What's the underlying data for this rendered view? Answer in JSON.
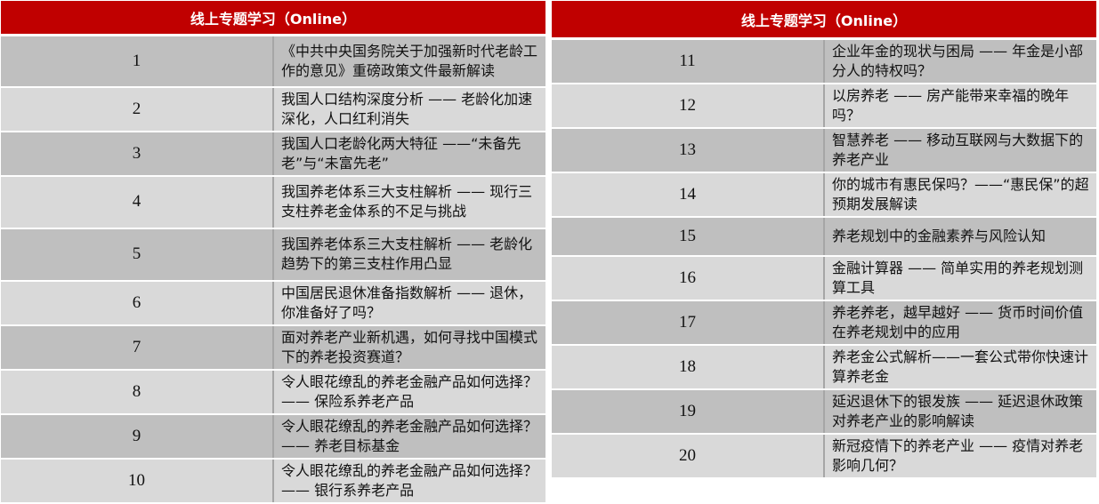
{
  "left": {
    "header": "线上专题学习（Online）",
    "rows": [
      {
        "num": "1",
        "title": "《中共中央国务院关于加强新时代老龄工作的意见》重磅政策文件最新解读"
      },
      {
        "num": "2",
        "title": "我国人口结构深度分析 —— 老龄化加速深化，人口红利消失"
      },
      {
        "num": "3",
        "title": "我国人口老龄化两大特征 ——“未备先老”与“未富先老”"
      },
      {
        "num": "4",
        "title": "我国养老体系三大支柱解析  ——  现行三支柱养老金体系的不足与挑战"
      },
      {
        "num": "5",
        "title": "我国养老体系三大支柱解析  ——  老龄化趋势下的第三支柱作用凸显"
      },
      {
        "num": "6",
        "title": "中国居民退休准备指数解析 —— 退休，你准备好了吗？"
      },
      {
        "num": "7",
        "title": "面对养老产业新机遇，如何寻找中国模式下的养老投资赛道？"
      },
      {
        "num": "8",
        "title": "令人眼花缭乱的养老金融产品如何选择？—— 保险系养老产品"
      },
      {
        "num": "9",
        "title": "令人眼花缭乱的养老金融产品如何选择？—— 养老目标基金"
      },
      {
        "num": "10",
        "title": "令人眼花缭乱的养老金融产品如何选择？—— 银行系养老产品"
      }
    ]
  },
  "right": {
    "header": "线上专题学习（Online）",
    "rows": [
      {
        "num": "11",
        "title": "企业年金的现状与困局 —— 年金是小部分人的特权吗？"
      },
      {
        "num": "12",
        "title": "以房养老 —— 房产能带来幸福的晚年吗？"
      },
      {
        "num": "13",
        "title": "智慧养老 —— 移动互联网与大数据下的养老产业"
      },
      {
        "num": "14",
        "title": "你的城市有惠民保吗？——“惠民保”的超预期发展解读"
      },
      {
        "num": "15",
        "title": "养老规划中的金融素养与风险认知"
      },
      {
        "num": "16",
        "title": "金融计算器 —— 简单实用的养老规划测算工具"
      },
      {
        "num": "17",
        "title": "养老养老，越早越好 —— 货币时间价值在养老规划中的应用"
      },
      {
        "num": "18",
        "title": "养老金公式解析——一套公式带你快速计算养老金"
      },
      {
        "num": "19",
        "title": "延迟退休下的银发族 —— 延迟退休政策对养老产业的影响解读"
      },
      {
        "num": "20",
        "title": "新冠疫情下的养老产业 —— 疫情对养老影响几何？"
      }
    ]
  },
  "colors": {
    "header": "#c00000",
    "row_dark": "#bfbfbf",
    "row_light": "#d9d9d9"
  }
}
